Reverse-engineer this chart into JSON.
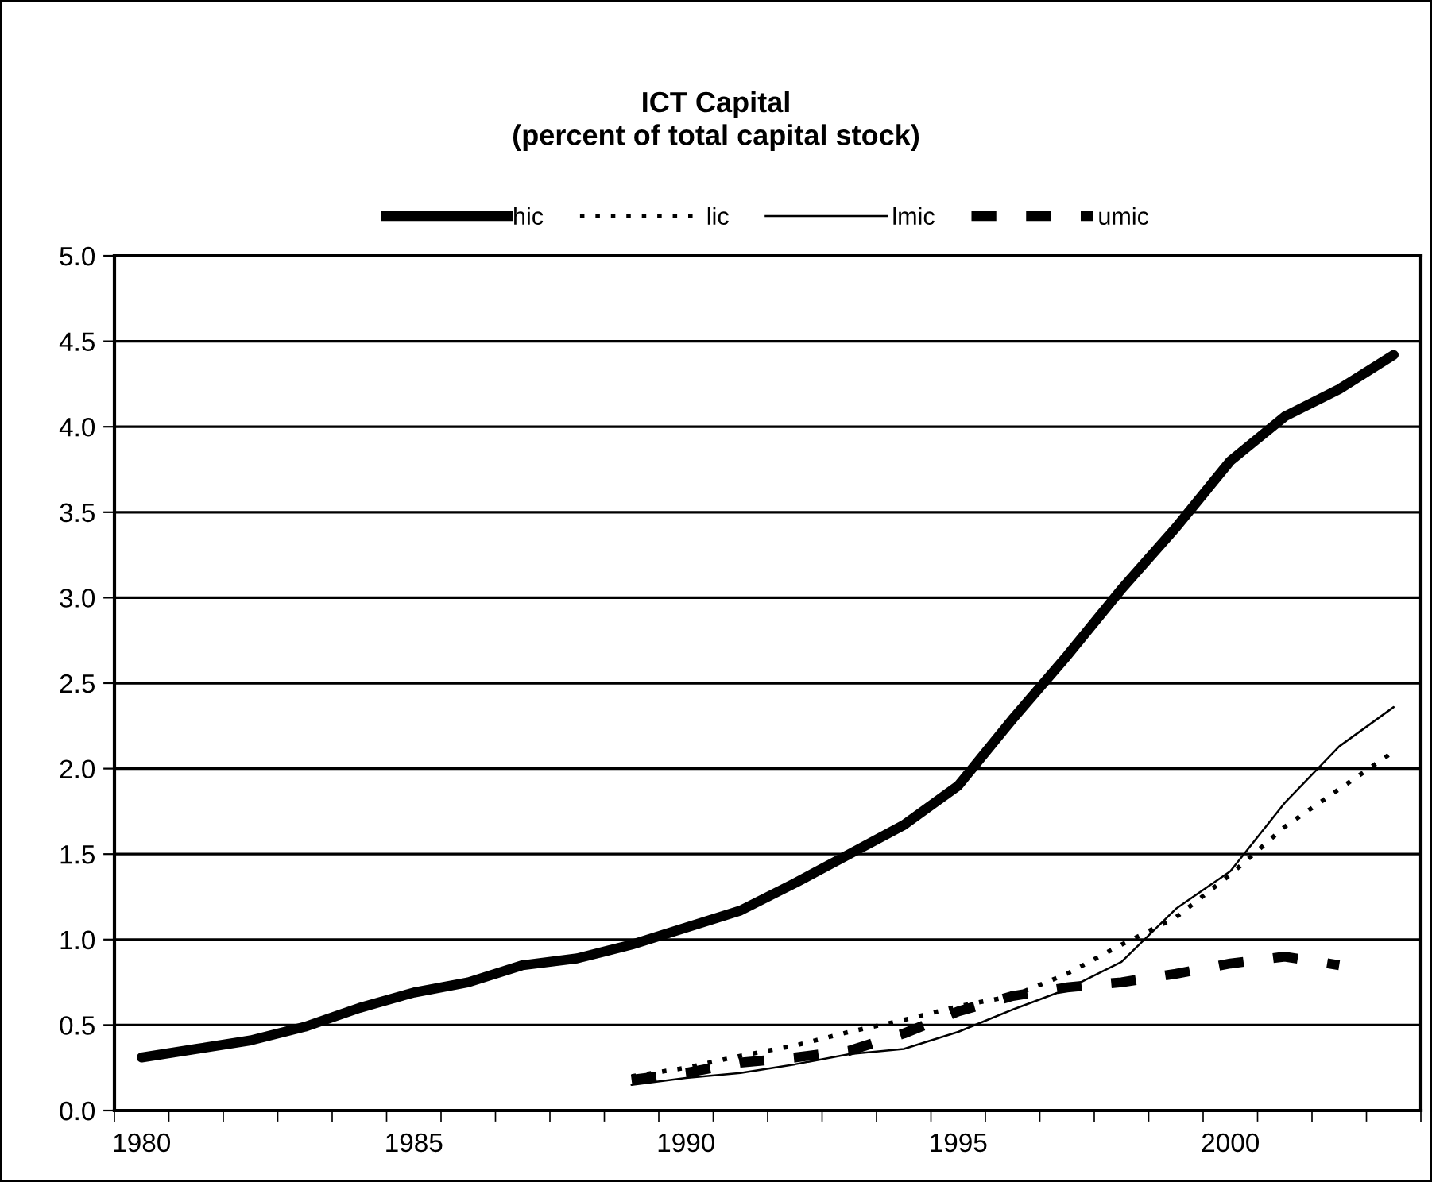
{
  "chart_data": {
    "type": "line",
    "title": "ICT Capital\n(percent of total capital stock)",
    "categories": [
      "1980",
      null,
      null,
      null,
      null,
      "1985",
      null,
      null,
      null,
      null,
      "1990",
      null,
      null,
      null,
      null,
      "1995",
      null,
      null,
      null,
      null,
      "2000",
      null,
      null,
      null
    ],
    "series": [
      {
        "name": "hic",
        "color": "#000000",
        "line_style": "solid",
        "values": [
          0.31,
          0.36,
          0.41,
          0.49,
          0.6,
          0.69,
          0.75,
          0.85,
          0.89,
          0.97,
          1.07,
          1.17,
          1.33,
          1.5,
          1.67,
          1.9,
          2.29,
          2.66,
          3.05,
          3.41,
          3.8,
          4.06,
          4.22,
          4.42
        ]
      },
      {
        "name": "lic",
        "color": "#000000",
        "line_style": "dotted",
        "values": [
          null,
          null,
          null,
          null,
          null,
          null,
          null,
          null,
          null,
          0.2,
          0.25,
          0.32,
          0.38,
          0.46,
          0.53,
          0.61,
          0.67,
          0.8,
          0.97,
          1.13,
          1.38,
          1.66,
          1.88,
          2.1
        ]
      },
      {
        "name": "lmic",
        "color": "#000000",
        "line_style": "solid",
        "values": [
          null,
          null,
          null,
          null,
          null,
          null,
          null,
          null,
          null,
          0.15,
          0.19,
          0.22,
          0.27,
          0.33,
          0.36,
          0.46,
          0.59,
          0.71,
          0.87,
          1.18,
          1.4,
          1.8,
          2.13,
          2.36
        ]
      },
      {
        "name": "umic",
        "color": "#000000",
        "line_style": "dashed",
        "values": [
          null,
          null,
          null,
          null,
          null,
          null,
          null,
          null,
          null,
          0.18,
          0.22,
          0.28,
          0.31,
          0.35,
          0.45,
          0.58,
          0.67,
          0.72,
          0.75,
          0.8,
          0.86,
          0.9,
          0.85,
          null
        ]
      }
    ],
    "ylim": [
      0,
      5
    ],
    "yticks": [
      {
        "value": 0,
        "label": "0.0"
      },
      {
        "value": 0.5,
        "label": "0.5"
      },
      {
        "value": 1,
        "label": "1.0"
      },
      {
        "value": 1.5,
        "label": "1.5"
      },
      {
        "value": 2,
        "label": "2.0"
      },
      {
        "value": 2.5,
        "label": "2.5"
      },
      {
        "value": 3,
        "label": "3.0"
      },
      {
        "value": 3.5,
        "label": "3.5"
      },
      {
        "value": 4,
        "label": "4.0"
      },
      {
        "value": 4.5,
        "label": "4.5"
      },
      {
        "value": 5,
        "label": "5.0"
      }
    ],
    "grid": "y",
    "legend": "top",
    "marker": "none"
  }
}
